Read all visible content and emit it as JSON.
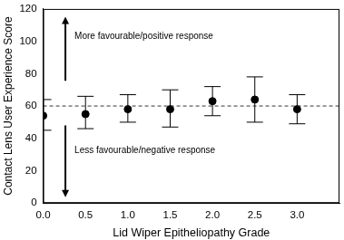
{
  "chart_data": {
    "type": "scatter",
    "xlabel": "Lid Wiper Epitheliopathy Grade",
    "ylabel": "Contact Lens User Experience Score",
    "x": [
      0,
      0.5,
      1,
      1.5,
      2,
      2.5,
      3
    ],
    "values": [
      54,
      55,
      58,
      58,
      63,
      64,
      58
    ],
    "error_low": [
      45,
      46,
      50,
      47,
      54,
      50,
      49
    ],
    "error_high": [
      64,
      66,
      67,
      70,
      72,
      78,
      67
    ],
    "hline": 60,
    "annotations": [
      "More favourable/positive response",
      "Less favourable/negative response"
    ],
    "color": "#000000",
    "marker": "circle",
    "grid": false,
    "xlim": [
      0,
      3.5
    ],
    "xticks": [
      {
        "value": 0,
        "label": "0.0"
      },
      0.5,
      {
        "value": 1,
        "label": "1.0"
      },
      1.5,
      {
        "value": 2,
        "label": "2.0"
      },
      2.5,
      {
        "value": 3,
        "label": "3.0"
      }
    ],
    "ylim": [
      0,
      120
    ],
    "yticks": [
      0,
      20,
      40,
      60,
      80,
      100,
      120
    ]
  }
}
